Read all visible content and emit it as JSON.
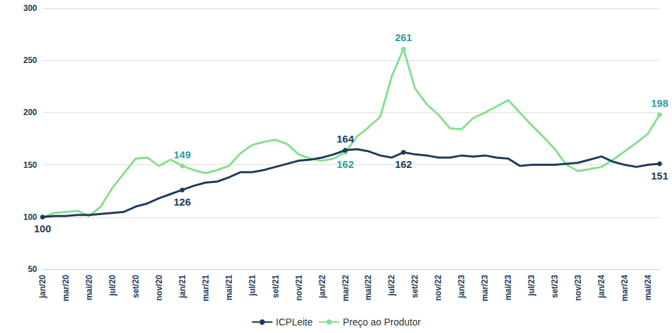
{
  "chart_data": {
    "type": "line",
    "categories": [
      "jan/20",
      null,
      "mar/20",
      null,
      "mai/20",
      null,
      "jul/20",
      null,
      "set/20",
      null,
      "nov/20",
      null,
      "jan/21",
      null,
      "mar/21",
      null,
      "mai/21",
      null,
      "jul/21",
      null,
      "set/21",
      null,
      "nov/21",
      null,
      "jan/22",
      null,
      "mar/22",
      null,
      "mai/22",
      null,
      "jul/22",
      null,
      "set/22",
      null,
      "nov/22",
      null,
      "jan/23",
      null,
      "mar/23",
      null,
      "mai/23",
      null,
      "jul/23",
      null,
      "set/23",
      null,
      "nov/23",
      null,
      "jan/24",
      null,
      "mar/24",
      null,
      "mai/24",
      null
    ],
    "series": [
      {
        "name": "ICPLeite",
        "color": "#1d3b5a",
        "values": [
          100,
          101,
          101,
          102,
          102,
          103,
          104,
          105,
          110,
          113,
          118,
          122,
          126,
          130,
          133,
          134,
          138,
          143,
          143,
          145,
          148,
          151,
          154,
          155,
          157,
          160,
          164,
          165,
          163,
          159,
          157,
          162,
          160,
          159,
          157,
          157,
          159,
          158,
          159,
          157,
          156,
          149,
          150,
          150,
          150,
          151,
          152,
          155,
          158,
          153,
          150,
          148,
          150,
          151
        ],
        "value_labels": [
          "100",
          null,
          null,
          null,
          null,
          null,
          null,
          null,
          null,
          null,
          null,
          null,
          "126",
          null,
          null,
          null,
          null,
          null,
          null,
          null,
          null,
          null,
          null,
          null,
          null,
          null,
          "164",
          null,
          null,
          null,
          null,
          "162",
          null,
          null,
          null,
          null,
          null,
          null,
          null,
          null,
          null,
          null,
          null,
          null,
          null,
          null,
          null,
          null,
          null,
          null,
          null,
          null,
          null,
          "151"
        ]
      },
      {
        "name": "Preço ao Produtor",
        "color": "#86df8f",
        "values": [
          100,
          104,
          105,
          106,
          101,
          110,
          128,
          142,
          156,
          157,
          149,
          155,
          149,
          145,
          142,
          145,
          149,
          161,
          169,
          172,
          174,
          170,
          160,
          156,
          154,
          156,
          162,
          177,
          186,
          196,
          235,
          261,
          223,
          208,
          198,
          185,
          184,
          195,
          200,
          206,
          212,
          200,
          188,
          177,
          165,
          150,
          144,
          146,
          148,
          155,
          163,
          171,
          180,
          198
        ],
        "value_labels": [
          null,
          null,
          null,
          null,
          null,
          null,
          null,
          null,
          null,
          null,
          null,
          null,
          "149",
          null,
          null,
          null,
          null,
          null,
          null,
          null,
          null,
          null,
          null,
          null,
          null,
          null,
          "162",
          null,
          null,
          null,
          null,
          "261",
          null,
          null,
          null,
          null,
          null,
          null,
          null,
          null,
          null,
          null,
          null,
          null,
          null,
          null,
          null,
          null,
          null,
          null,
          null,
          null,
          null,
          "198"
        ]
      }
    ],
    "ylim": [
      50,
      300
    ],
    "yticks": [
      50,
      100,
      150,
      200,
      250,
      300
    ],
    "grid": true,
    "legend": "bottom"
  }
}
